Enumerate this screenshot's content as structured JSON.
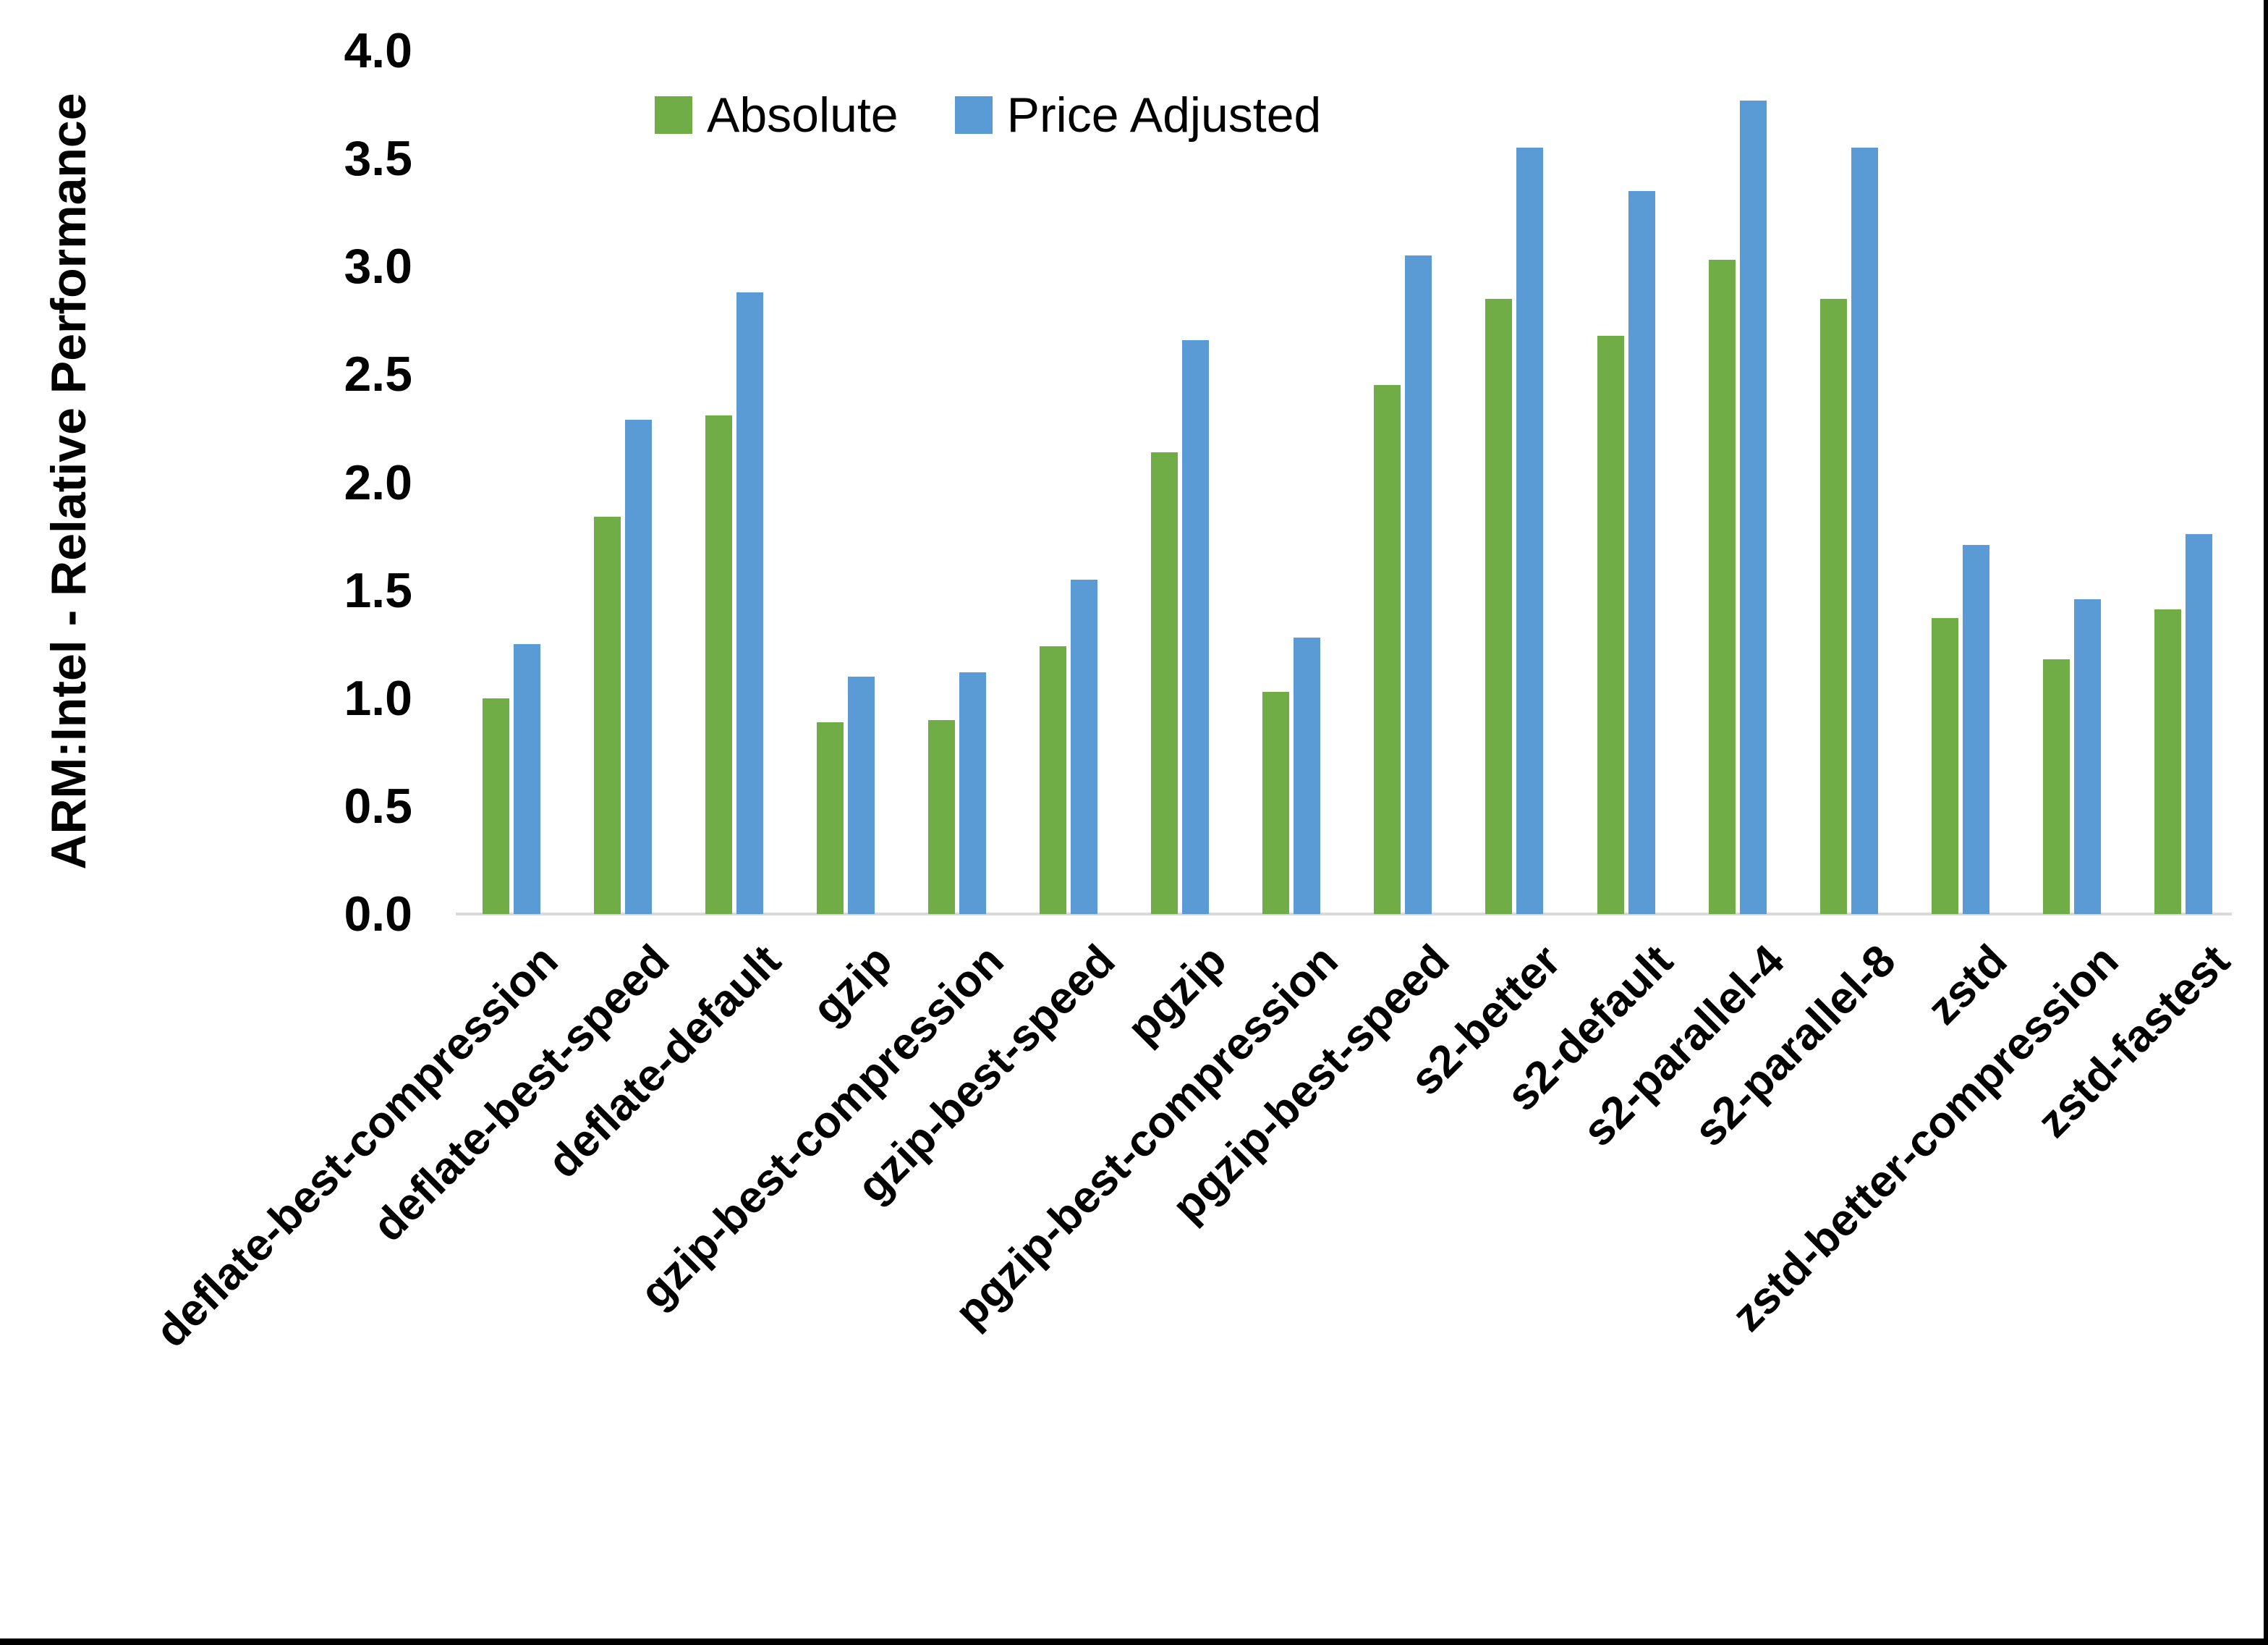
{
  "y_axis": {
    "title": "ARM:Intel - Relative Performance",
    "tick_labels": [
      "4.0",
      "3.5",
      "3.0",
      "2.5",
      "2.0",
      "1.5",
      "1.0",
      "0.5",
      "0.0"
    ],
    "min": 0.0,
    "max": 4.0,
    "step": 0.5
  },
  "legend": {
    "items": [
      {
        "label": "Absolute",
        "color": "#70AD47"
      },
      {
        "label": "Price Adjusted",
        "color": "#5B9BD5"
      }
    ]
  },
  "colors": {
    "absolute_green": "#70AD47",
    "price_adjusted_blue": "#5B9BD5",
    "axis_line_gray": "#d9d9d9",
    "frame_black": "#000000"
  },
  "chart_data": {
    "type": "bar",
    "title": "",
    "xlabel": "",
    "ylabel": "ARM:Intel - Relative Performance",
    "ylim": [
      0,
      4
    ],
    "grid": false,
    "legend_position": "top",
    "categories": [
      "deflate-best-compression",
      "deflate-best-speed",
      "deflate-default",
      "gzip",
      "gzip-best-compression",
      "gzip-best-speed",
      "pgzip",
      "pgzip-best-compression",
      "pgzip-best-speed",
      "s2-better",
      "s2-default",
      "s2-parallel-4",
      "s2-parallel-8",
      "zstd",
      "zstd-better-compression",
      "zstd-fastest"
    ],
    "series": [
      {
        "name": "Absolute",
        "color": "#70AD47",
        "values": [
          1.0,
          1.84,
          2.31,
          0.89,
          0.9,
          1.24,
          2.14,
          1.03,
          2.45,
          2.85,
          2.68,
          3.03,
          2.85,
          1.37,
          1.18,
          1.41
        ]
      },
      {
        "name": "Price Adjusted",
        "color": "#5B9BD5",
        "values": [
          1.25,
          2.29,
          2.88,
          1.1,
          1.12,
          1.55,
          2.66,
          1.28,
          3.05,
          3.55,
          3.35,
          3.77,
          3.55,
          1.71,
          1.46,
          1.76
        ]
      }
    ]
  }
}
